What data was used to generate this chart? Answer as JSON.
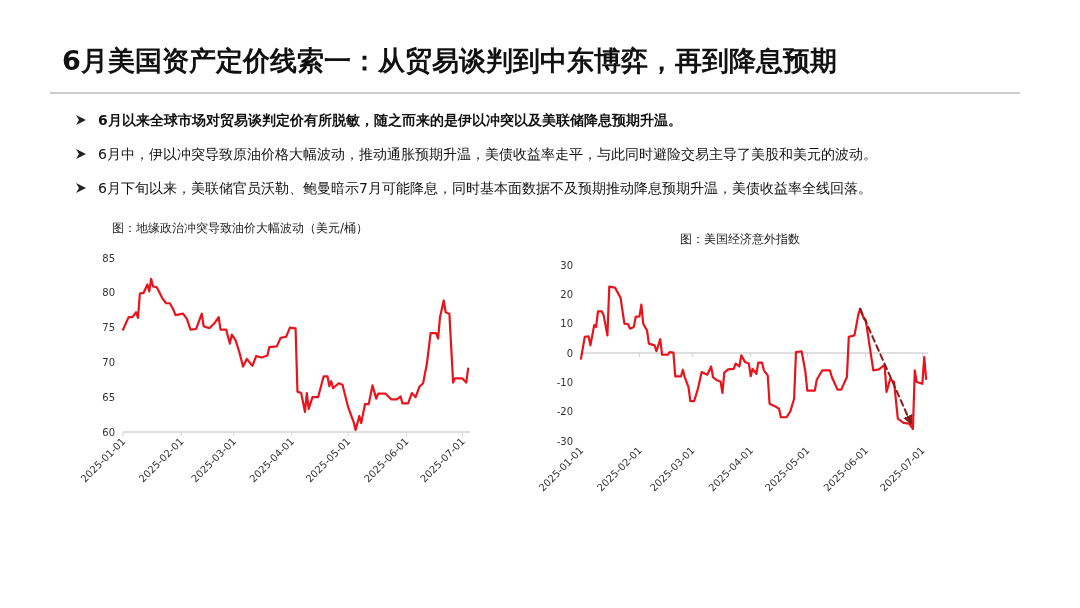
{
  "chart_data": [
    {
      "type": "other",
      "title": "6月美国资产定价线索一：从贸易谈判到中东博弈，再到降息预期",
      "annotations": [
        "6月以来全球市场对贸易谈判定价有所脱敏，随之而来的是伊以冲突以及美联储降息预期升温。",
        "6月中，伊以冲突导致原油价格大幅波动，推动通胀预期升温，美债收益率走平，与此同时避险交易主导了美股和美元的波动。",
        "6月下旬以来，美联储官员沃勒、鲍曼暗示7月可能降息，同时基本面数据不及预期推动降息预期升温，美债收益率全线回落。"
      ]
    },
    {
      "type": "line",
      "title": "图：地缘政治冲突导致油价大幅波动（美元/桶）",
      "xlim": [
        "2025-01-01",
        "2025-07-05"
      ],
      "xticks": [
        "2025-01-01",
        "2025-02-01",
        "2025-03-01",
        "2025-04-01",
        "2025-05-01",
        "2025-06-01",
        "2025-07-01"
      ],
      "ylim": [
        60,
        85
      ],
      "yticks": [
        60,
        65,
        70,
        75,
        80,
        85
      ],
      "series": [
        {
          "color": "#e8141b",
          "x": [
            "2025-01-01",
            "2025-01-04",
            "2025-01-06",
            "2025-01-08",
            "2025-01-09",
            "2025-01-10",
            "2025-01-12",
            "2025-01-14",
            "2025-01-15",
            "2025-01-16",
            "2025-01-17",
            "2025-01-19",
            "2025-01-22",
            "2025-01-24",
            "2025-01-26",
            "2025-01-28",
            "2025-01-29",
            "2025-02-02",
            "2025-02-04",
            "2025-02-06",
            "2025-02-09",
            "2025-02-12",
            "2025-02-13",
            "2025-02-16",
            "2025-02-19",
            "2025-02-21",
            "2025-02-22",
            "2025-02-25",
            "2025-02-27",
            "2025-02-28",
            "2025-03-02",
            "2025-03-04",
            "2025-03-06",
            "2025-03-08",
            "2025-03-11",
            "2025-03-13",
            "2025-03-16",
            "2025-03-19",
            "2025-03-20",
            "2025-03-24",
            "2025-03-26",
            "2025-03-29",
            "2025-03-31",
            "2025-04-03",
            "2025-04-04",
            "2025-04-06",
            "2025-04-08",
            "2025-04-09",
            "2025-04-10",
            "2025-04-12",
            "2025-04-15",
            "2025-04-18",
            "2025-04-20",
            "2025-04-21",
            "2025-04-22",
            "2025-04-23",
            "2025-04-26",
            "2025-04-28",
            "2025-05-01",
            "2025-05-04",
            "2025-05-05",
            "2025-05-07",
            "2025-05-08",
            "2025-05-10",
            "2025-05-12",
            "2025-05-14",
            "2025-05-16",
            "2025-05-17",
            "2025-05-21",
            "2025-05-24",
            "2025-05-27",
            "2025-05-29",
            "2025-05-30",
            "2025-06-02",
            "2025-06-04",
            "2025-06-06",
            "2025-06-08",
            "2025-06-10",
            "2025-06-12",
            "2025-06-14",
            "2025-06-17",
            "2025-06-18",
            "2025-06-19",
            "2025-06-21",
            "2025-06-22",
            "2025-06-24",
            "2025-06-26",
            "2025-06-27",
            "2025-07-01",
            "2025-07-03",
            "2025-07-04"
          ],
          "values": [
            74.7,
            76.5,
            76.5,
            77.2,
            76.4,
            79.9,
            80,
            81.2,
            80.2,
            82,
            80.9,
            80.8,
            79.2,
            78.5,
            78.5,
            77.5,
            76.8,
            77,
            76.3,
            74.7,
            74.8,
            77,
            75.2,
            74.9,
            75.7,
            76.5,
            74.7,
            74.7,
            72.7,
            74,
            73.2,
            71.5,
            69.4,
            70.5,
            69.5,
            70.9,
            70.7,
            71,
            72.2,
            72.3,
            73.5,
            73.7,
            75,
            74.9,
            65.8,
            65.6,
            62.9,
            65.6,
            63.3,
            65,
            65,
            68,
            68,
            66.6,
            67.3,
            66.3,
            67,
            66.8,
            63.6,
            61.4,
            60.3,
            62.3,
            61.3,
            64,
            64,
            66.7,
            64.8,
            65.5,
            65.5,
            64.7,
            64.7,
            65.1,
            64.1,
            64.1,
            65.6,
            65,
            66.5,
            67,
            69.8,
            74.2,
            74.2,
            73.4,
            76.5,
            78.9,
            77.2,
            77,
            67.1,
            67.7,
            67.7,
            67.1,
            69.1
          ]
        }
      ]
    },
    {
      "type": "line",
      "title": "图：美国经济意外指数",
      "xlim": [
        "2025-01-01",
        "2025-07-04"
      ],
      "xticks": [
        "2025-01-01",
        "2025-02-01",
        "2025-03-01",
        "2025-04-01",
        "2025-05-01",
        "2025-06-01",
        "2025-07-01"
      ],
      "ylim": [
        -30,
        30
      ],
      "yticks": [
        -30,
        -20,
        -10,
        0,
        10,
        20,
        30
      ],
      "series": [
        {
          "color": "#e8141b",
          "x": [
            "2025-01-01",
            "2025-01-03",
            "2025-01-05",
            "2025-01-06",
            "2025-01-08",
            "2025-01-09",
            "2025-01-10",
            "2025-01-12",
            "2025-01-13",
            "2025-01-15",
            "2025-01-16",
            "2025-01-19",
            "2025-01-22",
            "2025-01-24",
            "2025-01-26",
            "2025-01-27",
            "2025-01-29",
            "2025-01-30",
            "2025-02-01",
            "2025-02-02",
            "2025-02-03",
            "2025-02-05",
            "2025-02-06",
            "2025-02-09",
            "2025-02-10",
            "2025-02-12",
            "2025-02-13",
            "2025-02-16",
            "2025-02-17",
            "2025-02-19",
            "2025-02-20",
            "2025-02-23",
            "2025-02-24",
            "2025-02-25",
            "2025-02-27",
            "2025-02-28",
            "2025-03-02",
            "2025-03-04",
            "2025-03-06",
            "2025-03-09",
            "2025-03-11",
            "2025-03-12",
            "2025-03-14",
            "2025-03-16",
            "2025-03-17",
            "2025-03-18",
            "2025-03-20",
            "2025-03-23",
            "2025-03-24",
            "2025-03-26",
            "2025-03-27",
            "2025-03-29",
            "2025-03-31",
            "2025-04-01",
            "2025-04-02",
            "2025-04-04",
            "2025-04-05",
            "2025-04-07",
            "2025-04-08",
            "2025-04-10",
            "2025-04-11",
            "2025-04-14",
            "2025-04-16",
            "2025-04-17",
            "2025-04-20",
            "2025-04-22",
            "2025-04-24",
            "2025-04-25",
            "2025-04-28",
            "2025-04-30",
            "2025-05-01",
            "2025-05-05",
            "2025-05-06",
            "2025-05-09",
            "2025-05-13",
            "2025-05-14",
            "2025-05-17",
            "2025-05-19",
            "2025-05-22",
            "2025-05-23",
            "2025-05-26",
            "2025-05-28",
            "2025-05-29",
            "2025-05-31",
            "2025-06-01",
            "2025-06-03",
            "2025-06-05",
            "2025-06-08",
            "2025-06-11",
            "2025-06-12",
            "2025-06-14",
            "2025-06-16",
            "2025-06-18",
            "2025-06-21",
            "2025-06-24",
            "2025-06-26",
            "2025-06-27",
            "2025-06-28",
            "2025-07-01",
            "2025-07-02",
            "2025-07-03"
          ],
          "values": [
            -1.9,
            5.5,
            5.7,
            2.6,
            9.5,
            8.9,
            14.2,
            14.2,
            12.9,
            6,
            22.6,
            22.3,
            18.8,
            10,
            9.8,
            8.3,
            8.9,
            12.3,
            12.5,
            16.5,
            10,
            7.7,
            3.2,
            2.6,
            0.6,
            4.7,
            -0.6,
            -0.6,
            0.3,
            0.1,
            -8,
            -8,
            -5.7,
            -8.2,
            -11.6,
            -16.4,
            -16.4,
            -12.2,
            -6.5,
            -7.4,
            -4.6,
            -8.2,
            -9.3,
            -9.7,
            -13.6,
            -6.7,
            -5.6,
            -5.4,
            -3.6,
            -4.6,
            -0.8,
            -3.1,
            -3.6,
            -7.9,
            -5.4,
            -7.1,
            -3.3,
            -3.3,
            -5.9,
            -7.6,
            -17.3,
            -18.2,
            -19,
            -21.9,
            -21.9,
            -19.9,
            -15.6,
            0.3,
            0.6,
            -6.5,
            -12.8,
            -12.8,
            -9.1,
            -5.9,
            -5.9,
            -8.2,
            -12.5,
            -12.5,
            -8.2,
            5.5,
            6,
            12.9,
            15.1,
            11.7,
            11.2,
            2.6,
            -5.9,
            -5.6,
            -4,
            -13.3,
            -8.8,
            -9.9,
            -22.4,
            -23.8,
            -24.1,
            -25.9,
            -5.9,
            -9.9,
            -10.5,
            -1.4,
            -8.8
          ]
        },
        {
          "type": "line",
          "color": "#8b1a1a",
          "line_style": "dashed",
          "x": [
            "2025-05-29",
            "2025-06-25"
          ],
          "values": [
            15.1,
            -24
          ]
        }
      ]
    }
  ]
}
